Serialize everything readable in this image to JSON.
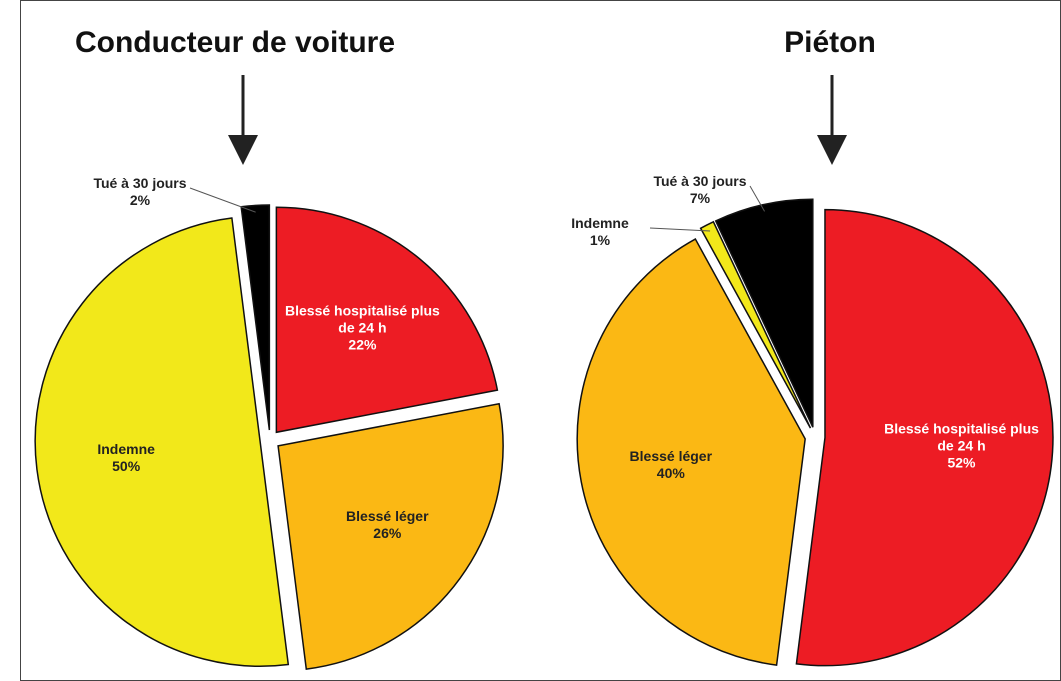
{
  "chart_data": [
    {
      "type": "pie",
      "title": "Conducteur de voiture",
      "categories": [
        "Blessé hospitalisé plus de 24 h",
        "Blessé léger",
        "Indemne",
        "Tué à 30 jours"
      ],
      "values": [
        22,
        26,
        50,
        2
      ],
      "value_labels": [
        "22%",
        "26%",
        "50%",
        "2%"
      ],
      "colors": [
        "#ed1c24",
        "#fbb814",
        "#f2e81a",
        "#000000"
      ]
    },
    {
      "type": "pie",
      "title": "Piéton",
      "categories": [
        "Blessé hospitalisé plus de 24 h",
        "Blessé léger",
        "Indemne",
        "Tué à 30 jours"
      ],
      "values": [
        52,
        40,
        1,
        7
      ],
      "value_labels": [
        "52%",
        "40%",
        "1%",
        "7%"
      ],
      "colors": [
        "#ed1c24",
        "#fbb814",
        "#f2e81a",
        "#000000"
      ]
    }
  ]
}
